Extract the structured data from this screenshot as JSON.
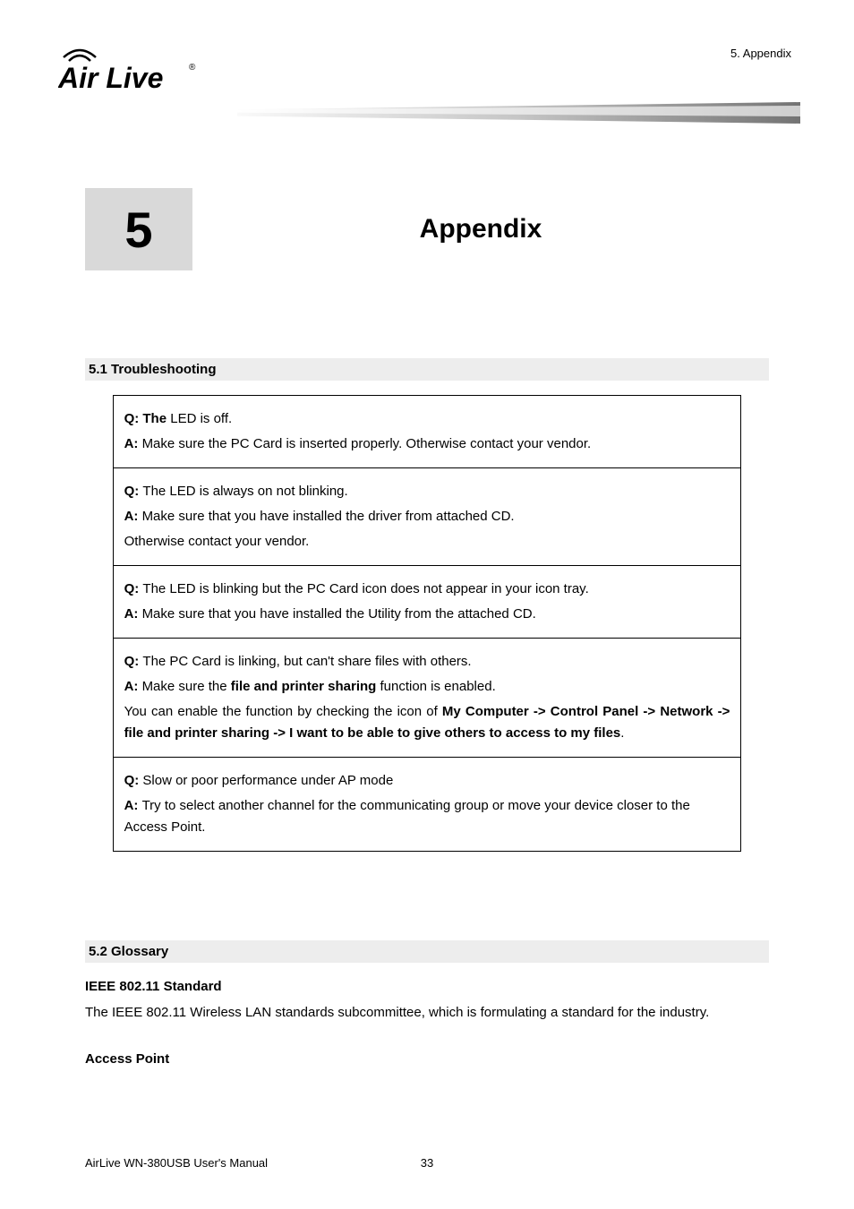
{
  "header": {
    "right_text": "5. Appendix",
    "logo_text_top": "Air Live",
    "logo_reg": "®"
  },
  "chapter": {
    "number": "5",
    "title": "Appendix"
  },
  "section51": {
    "heading": "5.1 Troubleshooting",
    "rows": [
      {
        "lines": [
          {
            "prefix": "Q: The ",
            "prefix_bold": true,
            "rest": "LED is off."
          },
          {
            "prefix": "A: ",
            "prefix_bold": true,
            "rest": "Make sure the PC Card is inserted properly. Otherwise contact your vendor."
          }
        ]
      },
      {
        "lines": [
          {
            "prefix": "Q: ",
            "prefix_bold": true,
            "rest": "The LED is always on not blinking."
          },
          {
            "prefix": "A: ",
            "prefix_bold": true,
            "rest": "Make sure that you have installed the driver from attached CD."
          },
          {
            "prefix": "",
            "prefix_bold": false,
            "rest": "Otherwise contact your vendor."
          }
        ]
      },
      {
        "lines": [
          {
            "prefix": "Q: ",
            "prefix_bold": true,
            "rest": "The LED is blinking but the PC Card icon does not appear in your icon tray."
          },
          {
            "prefix": "A: ",
            "prefix_bold": true,
            "rest": "Make sure that you have installed the Utility from the attached CD."
          }
        ]
      },
      {
        "lines": [
          {
            "prefix": "Q: ",
            "prefix_bold": true,
            "rest": "The PC Card is linking, but can't share files with others."
          },
          {
            "prefix": "A: ",
            "prefix_bold": true,
            "rest_parts": [
              {
                "text": "Make sure the ",
                "bold": false
              },
              {
                "text": "file and printer sharing",
                "bold": true
              },
              {
                "text": " function is enabled.",
                "bold": false
              }
            ]
          },
          {
            "justify": true,
            "rest_parts": [
              {
                "text": "You can enable the function by checking the icon of ",
                "bold": false
              },
              {
                "text": "My Computer -> Control Panel -> Network -> file and printer sharing -> I want to be able to give others to access to my files",
                "bold": true
              },
              {
                "text": ".",
                "bold": false
              }
            ]
          }
        ]
      },
      {
        "lines": [
          {
            "prefix": "Q: ",
            "prefix_bold": true,
            "rest": "Slow or poor performance under AP mode"
          },
          {
            "prefix": "A: ",
            "prefix_bold": true,
            "rest": "Try to select another channel for the communicating group or move your device closer to the Access Point."
          }
        ]
      }
    ]
  },
  "section52": {
    "heading": "5.2 Glossary",
    "sub1_title": "IEEE 802.11 Standard",
    "sub1_body": "The IEEE 802.11 Wireless LAN standards subcommittee, which is formulating a standard for the industry.",
    "sub2_title": "Access Point"
  },
  "footer": {
    "left": "AirLive WN-380USB User's Manual",
    "page": "33"
  }
}
